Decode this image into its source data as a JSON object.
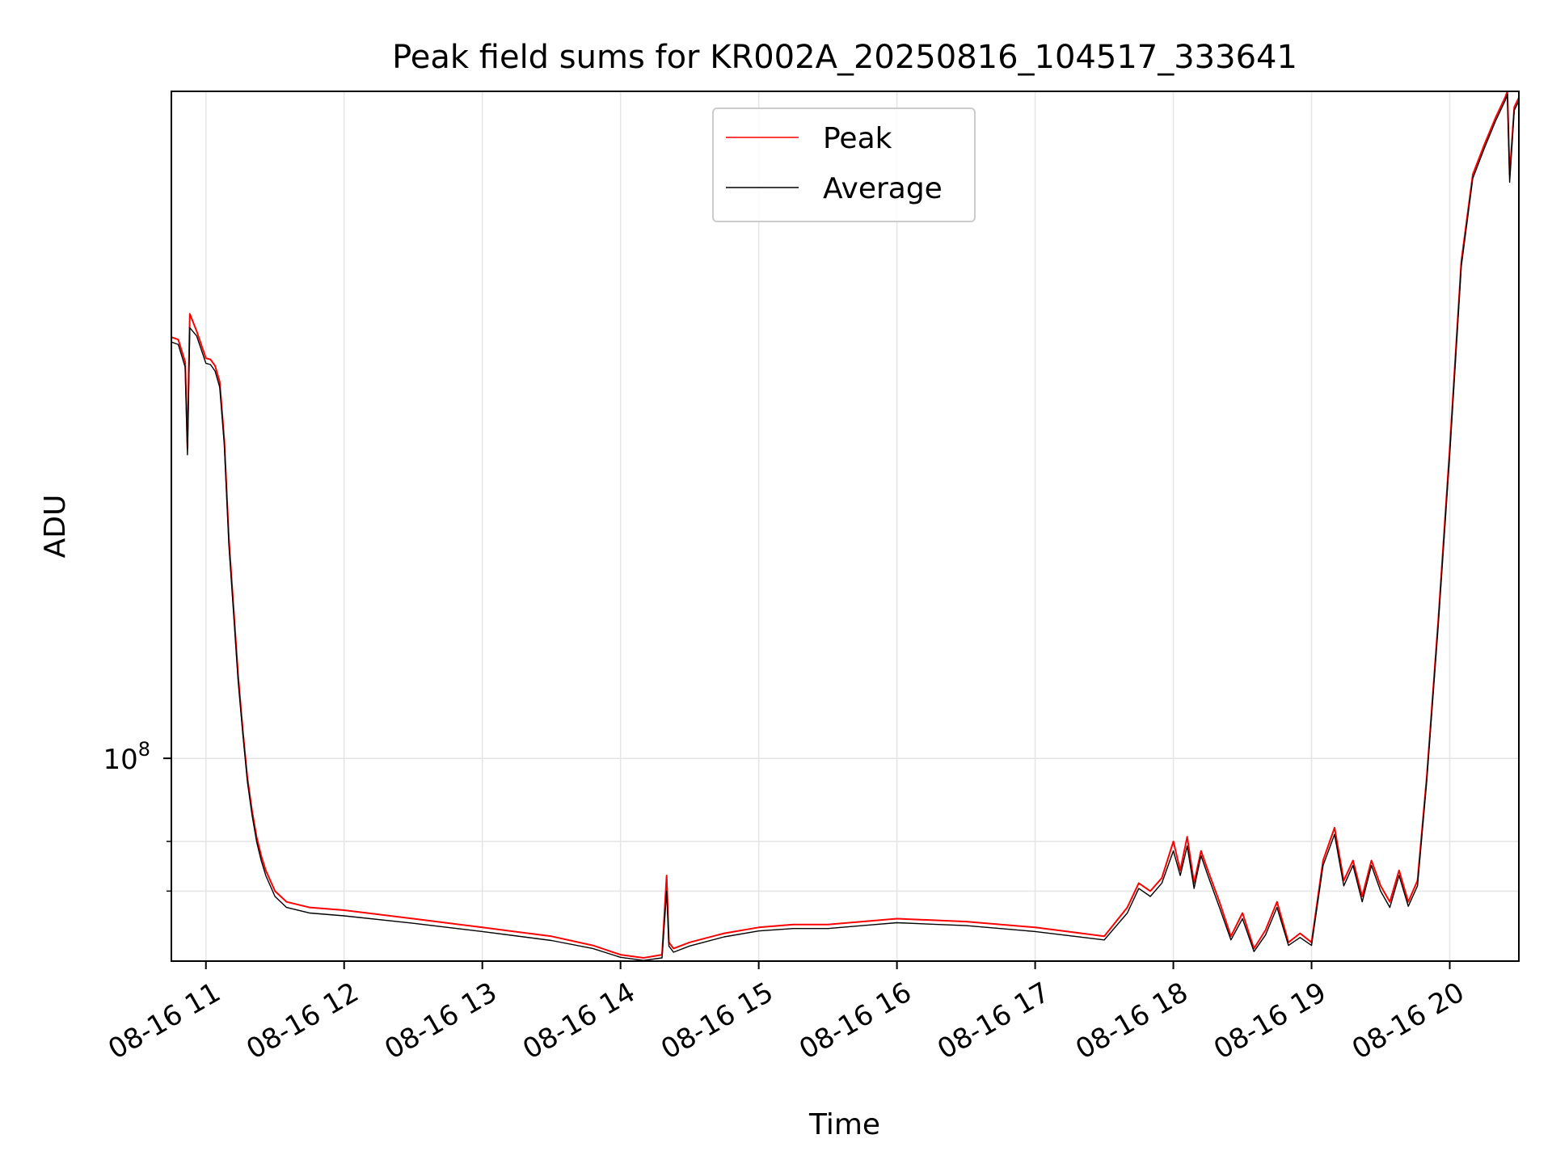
{
  "chart_data": {
    "type": "line",
    "title": "Peak field sums for KR002A_20250816_104517_333641",
    "xlabel": "Time",
    "ylabel": "ADU",
    "yscale": "log",
    "xlim": [
      "2025-08-16 10:45",
      "2025-08-16 20:30"
    ],
    "ylim": [
      58000000,
      600000000
    ],
    "x_ticks": [
      {
        "time": "2025-08-16 11:00",
        "label": "08-16 11"
      },
      {
        "time": "2025-08-16 12:00",
        "label": "08-16 12"
      },
      {
        "time": "2025-08-16 13:00",
        "label": "08-16 13"
      },
      {
        "time": "2025-08-16 14:00",
        "label": "08-16 14"
      },
      {
        "time": "2025-08-16 15:00",
        "label": "08-16 15"
      },
      {
        "time": "2025-08-16 16:00",
        "label": "08-16 16"
      },
      {
        "time": "2025-08-16 17:00",
        "label": "08-16 17"
      },
      {
        "time": "2025-08-16 18:00",
        "label": "08-16 18"
      },
      {
        "time": "2025-08-16 19:00",
        "label": "08-16 19"
      },
      {
        "time": "2025-08-16 20:00",
        "label": "08-16 20"
      }
    ],
    "y_major_ticks": [
      {
        "value": 100000000,
        "base": "10",
        "exp": "8"
      }
    ],
    "y_minor_ticks": [
      70000000,
      80000000
    ],
    "grid": true,
    "legend": {
      "placement": "top-center",
      "entries": [
        "Peak",
        "Average"
      ]
    },
    "series": [
      {
        "name": "Peak",
        "color": "#ff0000",
        "x": [
          "2025-08-16 10:45",
          "2025-08-16 10:48",
          "2025-08-16 10:51",
          "2025-08-16 10:52",
          "2025-08-16 10:53",
          "2025-08-16 10:56",
          "2025-08-16 11:00",
          "2025-08-16 11:02",
          "2025-08-16 11:04",
          "2025-08-16 11:06",
          "2025-08-16 11:08",
          "2025-08-16 11:10",
          "2025-08-16 11:12",
          "2025-08-16 11:14",
          "2025-08-16 11:16",
          "2025-08-16 11:18",
          "2025-08-16 11:20",
          "2025-08-16 11:22",
          "2025-08-16 11:24",
          "2025-08-16 11:26",
          "2025-08-16 11:30",
          "2025-08-16 11:35",
          "2025-08-16 11:45",
          "2025-08-16 12:00",
          "2025-08-16 12:30",
          "2025-08-16 13:00",
          "2025-08-16 13:30",
          "2025-08-16 13:48",
          "2025-08-16 14:00",
          "2025-08-16 14:10",
          "2025-08-16 14:18",
          "2025-08-16 14:20",
          "2025-08-16 14:21",
          "2025-08-16 14:23",
          "2025-08-16 14:30",
          "2025-08-16 14:45",
          "2025-08-16 15:00",
          "2025-08-16 15:15",
          "2025-08-16 15:30",
          "2025-08-16 15:45",
          "2025-08-16 16:00",
          "2025-08-16 16:30",
          "2025-08-16 17:00",
          "2025-08-16 17:30",
          "2025-08-16 17:40",
          "2025-08-16 17:45",
          "2025-08-16 17:50",
          "2025-08-16 17:55",
          "2025-08-16 18:00",
          "2025-08-16 18:03",
          "2025-08-16 18:06",
          "2025-08-16 18:09",
          "2025-08-16 18:12",
          "2025-08-16 18:15",
          "2025-08-16 18:20",
          "2025-08-16 18:25",
          "2025-08-16 18:30",
          "2025-08-16 18:35",
          "2025-08-16 18:40",
          "2025-08-16 18:45",
          "2025-08-16 18:50",
          "2025-08-16 18:55",
          "2025-08-16 19:00",
          "2025-08-16 19:05",
          "2025-08-16 19:10",
          "2025-08-16 19:14",
          "2025-08-16 19:18",
          "2025-08-16 19:22",
          "2025-08-16 19:26",
          "2025-08-16 19:30",
          "2025-08-16 19:34",
          "2025-08-16 19:38",
          "2025-08-16 19:42",
          "2025-08-16 19:46",
          "2025-08-16 19:50",
          "2025-08-16 19:55",
          "2025-08-16 20:00",
          "2025-08-16 20:05",
          "2025-08-16 20:10",
          "2025-08-16 20:15",
          "2025-08-16 20:20",
          "2025-08-16 20:24",
          "2025-08-16 20:25",
          "2025-08-16 20:26",
          "2025-08-16 20:28",
          "2025-08-16 20:30"
        ],
        "y": [
          310000000,
          308000000,
          290000000,
          230000000,
          330000000,
          315000000,
          293000000,
          292000000,
          287000000,
          275000000,
          235000000,
          180000000,
          150000000,
          125000000,
          108000000,
          95000000,
          87000000,
          81000000,
          77000000,
          74000000,
          70000000,
          68000000,
          67000000,
          66500000,
          65000000,
          63500000,
          62000000,
          60500000,
          59000000,
          58500000,
          59000000,
          73000000,
          61000000,
          60000000,
          61000000,
          62500000,
          63500000,
          64000000,
          64000000,
          64500000,
          65000000,
          64500000,
          63500000,
          62000000,
          67000000,
          71500000,
          70000000,
          72500000,
          80000000,
          74000000,
          81000000,
          71500000,
          78000000,
          74000000,
          68000000,
          62000000,
          66000000,
          60000000,
          63000000,
          68000000,
          61000000,
          62500000,
          61000000,
          76000000,
          83000000,
          72000000,
          76000000,
          69000000,
          76000000,
          71000000,
          68000000,
          74000000,
          68000000,
          72000000,
          95000000,
          145000000,
          230000000,
          380000000,
          480000000,
          520000000,
          560000000,
          590000000,
          600000000,
          480000000,
          575000000,
          590000000
        ]
      },
      {
        "name": "Average",
        "color": "#000000",
        "x": [
          "2025-08-16 10:45",
          "2025-08-16 10:48",
          "2025-08-16 10:51",
          "2025-08-16 10:52",
          "2025-08-16 10:53",
          "2025-08-16 10:56",
          "2025-08-16 11:00",
          "2025-08-16 11:02",
          "2025-08-16 11:04",
          "2025-08-16 11:06",
          "2025-08-16 11:08",
          "2025-08-16 11:10",
          "2025-08-16 11:12",
          "2025-08-16 11:14",
          "2025-08-16 11:16",
          "2025-08-16 11:18",
          "2025-08-16 11:20",
          "2025-08-16 11:22",
          "2025-08-16 11:24",
          "2025-08-16 11:26",
          "2025-08-16 11:30",
          "2025-08-16 11:35",
          "2025-08-16 11:45",
          "2025-08-16 12:00",
          "2025-08-16 12:30",
          "2025-08-16 13:00",
          "2025-08-16 13:30",
          "2025-08-16 13:48",
          "2025-08-16 14:00",
          "2025-08-16 14:10",
          "2025-08-16 14:18",
          "2025-08-16 14:20",
          "2025-08-16 14:21",
          "2025-08-16 14:23",
          "2025-08-16 14:30",
          "2025-08-16 14:45",
          "2025-08-16 15:00",
          "2025-08-16 15:15",
          "2025-08-16 15:30",
          "2025-08-16 15:45",
          "2025-08-16 16:00",
          "2025-08-16 16:30",
          "2025-08-16 17:00",
          "2025-08-16 17:30",
          "2025-08-16 17:40",
          "2025-08-16 17:45",
          "2025-08-16 17:50",
          "2025-08-16 17:55",
          "2025-08-16 18:00",
          "2025-08-16 18:03",
          "2025-08-16 18:06",
          "2025-08-16 18:09",
          "2025-08-16 18:12",
          "2025-08-16 18:15",
          "2025-08-16 18:20",
          "2025-08-16 18:25",
          "2025-08-16 18:30",
          "2025-08-16 18:35",
          "2025-08-16 18:40",
          "2025-08-16 18:45",
          "2025-08-16 18:50",
          "2025-08-16 18:55",
          "2025-08-16 19:00",
          "2025-08-16 19:05",
          "2025-08-16 19:10",
          "2025-08-16 19:14",
          "2025-08-16 19:18",
          "2025-08-16 19:22",
          "2025-08-16 19:26",
          "2025-08-16 19:30",
          "2025-08-16 19:34",
          "2025-08-16 19:38",
          "2025-08-16 19:42",
          "2025-08-16 19:46",
          "2025-08-16 19:50",
          "2025-08-16 19:55",
          "2025-08-16 20:00",
          "2025-08-16 20:05",
          "2025-08-16 20:10",
          "2025-08-16 20:15",
          "2025-08-16 20:20",
          "2025-08-16 20:24",
          "2025-08-16 20:25",
          "2025-08-16 20:26",
          "2025-08-16 20:28",
          "2025-08-16 20:30"
        ],
        "y": [
          306000000,
          304000000,
          286000000,
          226000000,
          318000000,
          311000000,
          289000000,
          288000000,
          283000000,
          271000000,
          232000000,
          177000000,
          148000000,
          123000000,
          107000000,
          94000000,
          86000000,
          80000000,
          76000000,
          73000000,
          69000000,
          67000000,
          66000000,
          65500000,
          64200000,
          62800000,
          61300000,
          60000000,
          58600000,
          58100000,
          58500000,
          70000000,
          60400000,
          59400000,
          60400000,
          61900000,
          62900000,
          63300000,
          63300000,
          63800000,
          64300000,
          63800000,
          62800000,
          61400000,
          66000000,
          70500000,
          69000000,
          71500000,
          78000000,
          73000000,
          79000000,
          70500000,
          77000000,
          73000000,
          67000000,
          61400000,
          65000000,
          59500000,
          62200000,
          67000000,
          60500000,
          61800000,
          60500000,
          75000000,
          81500000,
          71000000,
          75000000,
          68000000,
          75000000,
          70000000,
          67000000,
          73000000,
          67200000,
          71000000,
          94000000,
          143000000,
          226000000,
          375000000,
          475000000,
          515000000,
          555000000,
          585000000,
          595000000,
          470000000,
          570000000,
          585000000
        ]
      }
    ]
  }
}
